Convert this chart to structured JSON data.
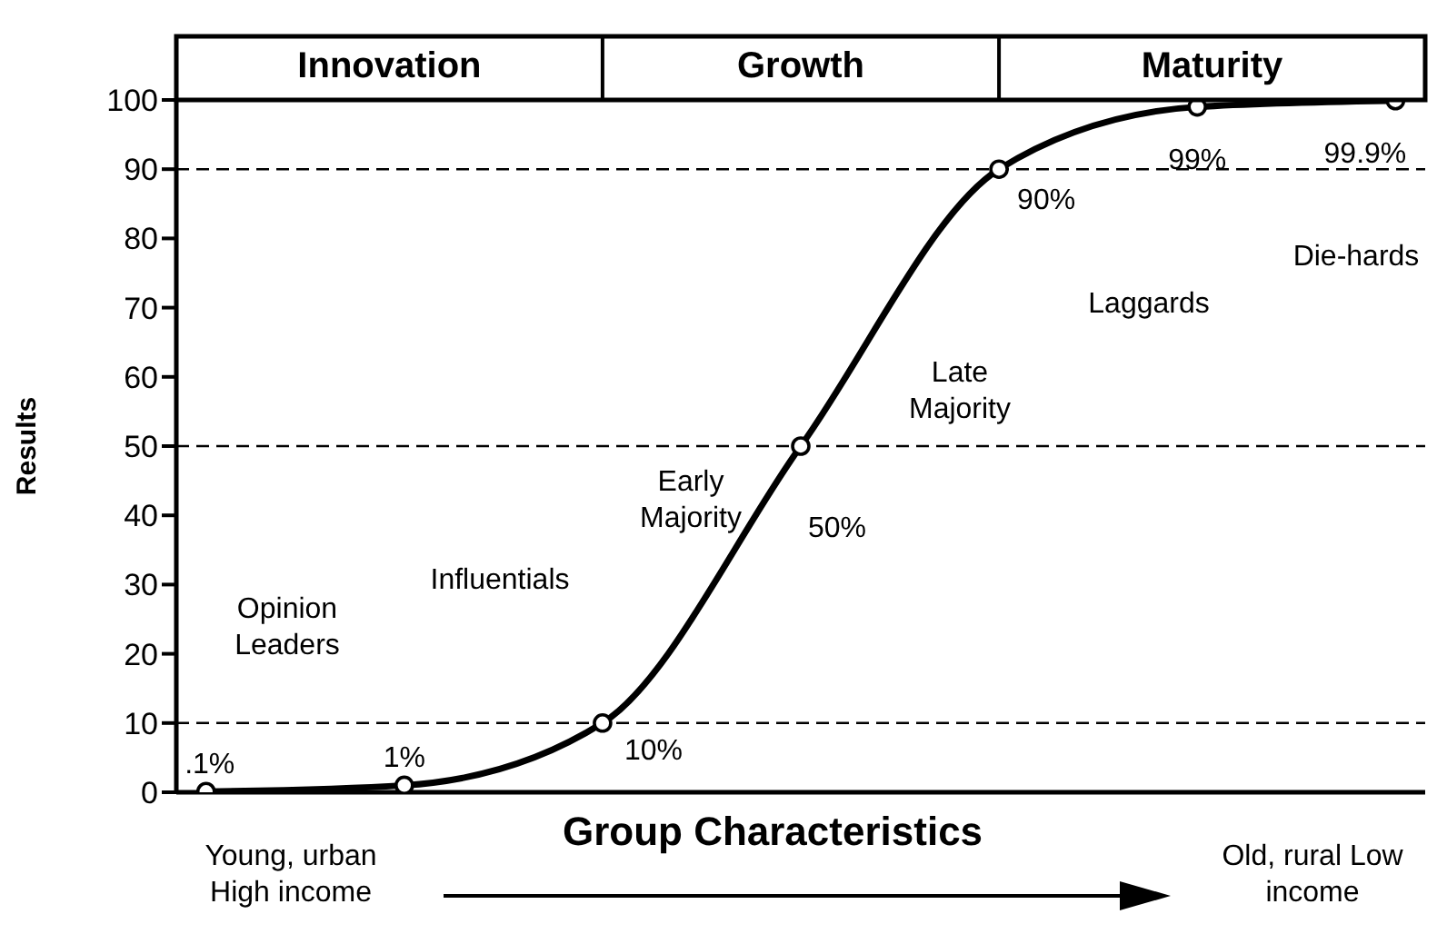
{
  "chart_data": {
    "type": "line",
    "ylabel": "Results",
    "xlabel": "Group Characteristics",
    "categories": [
      null,
      null,
      null,
      null,
      null,
      null,
      null
    ],
    "series": [
      {
        "color": "#000000",
        "values": [
          0.1,
          1,
          10,
          50,
          90,
          99,
          99.9
        ],
        "value_labels": [
          ".1%",
          "1%",
          "10%",
          "50%",
          "90%",
          "99%",
          "99.9%"
        ]
      }
    ],
    "ylim": [
      0,
      100
    ],
    "yticks": [
      0,
      10,
      20,
      30,
      40,
      50,
      60,
      70,
      80,
      90,
      100
    ],
    "marker": "circle",
    "line_style": "solid",
    "ref_lines": [
      {
        "axis": "y",
        "value": 10,
        "line_style": "dashed",
        "color": "#000000"
      },
      {
        "axis": "y",
        "value": 50,
        "line_style": "dashed",
        "color": "#000000"
      },
      {
        "axis": "y",
        "value": 90,
        "line_style": "dashed",
        "color": "#000000"
      }
    ],
    "annotations": [
      "Innovation",
      "Growth",
      "Maturity",
      "Opinion Leaders",
      "Influentials",
      "Early Majority",
      "Late Majority",
      "Laggards",
      "Die-hards",
      "Young, urban High income",
      "Old, rural Low income"
    ]
  }
}
